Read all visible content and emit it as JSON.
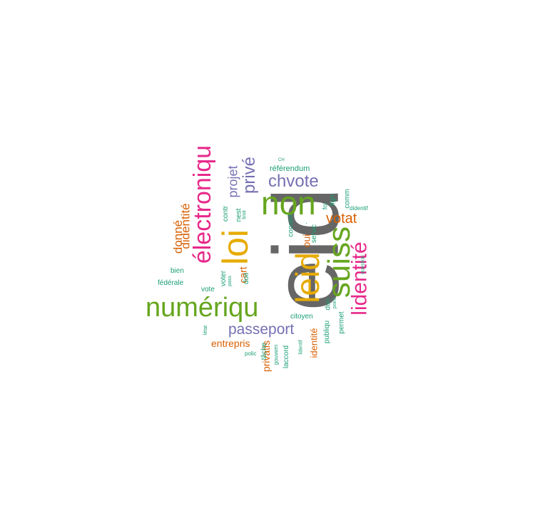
{
  "palette": {
    "gray": "#666666",
    "green": "#66a61e",
    "pink": "#e7298a",
    "gold": "#e6ab02",
    "purple": "#7570b3",
    "orange": "#d95f02",
    "teal": "#1b9e77"
  },
  "words": [
    {
      "id": "eid",
      "text": "eid",
      "color": "gray"
    },
    {
      "id": "non",
      "text": "non",
      "color": "green"
    },
    {
      "id": "loi",
      "text": "loi",
      "color": "gold"
    },
    {
      "id": "leid",
      "text": "leid",
      "color": "gold"
    },
    {
      "id": "suiss",
      "text": "suiss",
      "color": "green"
    },
    {
      "id": "numeriqu",
      "text": "numériqu",
      "color": "green"
    },
    {
      "id": "electroniqu",
      "text": "électroniqu",
      "color": "pink"
    },
    {
      "id": "lidentite",
      "text": "lidentité",
      "color": "pink"
    },
    {
      "id": "chvote",
      "text": "chvote",
      "color": "purple"
    },
    {
      "id": "passeport",
      "text": "passeport",
      "color": "purple"
    },
    {
      "id": "prive",
      "text": "privé",
      "color": "purple"
    },
    {
      "id": "projet",
      "text": "projet",
      "color": "purple"
    },
    {
      "id": "votat",
      "text": "votat",
      "color": "orange"
    },
    {
      "id": "donne",
      "text": "donné",
      "color": "orange"
    },
    {
      "id": "didentite",
      "text": "didentité",
      "color": "orange"
    },
    {
      "id": "entrepris",
      "text": "entrepris",
      "color": "orange"
    },
    {
      "id": "privatis",
      "text": "privatis",
      "color": "orange"
    },
    {
      "id": "identite",
      "text": "identité",
      "color": "orange"
    },
    {
      "id": "oui",
      "text": "oui",
      "color": "orange"
    },
    {
      "id": "cart",
      "text": "cart",
      "color": "orange"
    },
    {
      "id": "referendum",
      "text": "référendum",
      "color": "teal"
    },
    {
      "id": "ch",
      "text": "CH",
      "color": "teal"
    },
    {
      "id": "bien",
      "text": "bien",
      "color": "teal"
    },
    {
      "id": "federale",
      "text": "fédérale",
      "color": "teal"
    },
    {
      "id": "vote",
      "text": "vote",
      "color": "teal"
    },
    {
      "id": "citoyen",
      "text": "citoyen",
      "color": "teal"
    },
    {
      "id": "contr",
      "text": "contr",
      "color": "teal"
    },
    {
      "id": "nest",
      "text": "nest",
      "color": "teal"
    },
    {
      "id": "limit",
      "text": "limit",
      "color": "teal"
    },
    {
      "id": "conseil",
      "text": "conseil",
      "color": "teal"
    },
    {
      "id": "servic",
      "text": "servic",
      "color": "teal"
    },
    {
      "id": "foi",
      "text": "foi",
      "color": "teal"
    },
    {
      "id": "lign",
      "text": "lign",
      "color": "teal"
    },
    {
      "id": "comm",
      "text": "comm",
      "color": "teal"
    },
    {
      "id": "didentif",
      "text": "didentif",
      "color": "teal"
    },
    {
      "id": "question",
      "text": "question",
      "color": "teal"
    },
    {
      "id": "voter",
      "text": "voter",
      "color": "teal"
    },
    {
      "id": "pass",
      "text": "pass",
      "color": "teal"
    },
    {
      "id": "doit",
      "text": "doit",
      "color": "teal"
    },
    {
      "id": "letat",
      "text": "létat",
      "color": "teal"
    },
    {
      "id": "polic",
      "text": "polic",
      "color": "teal"
    },
    {
      "id": "tache",
      "text": "tâche",
      "color": "teal"
    },
    {
      "id": "gouvern",
      "text": "gouvern",
      "color": "teal"
    },
    {
      "id": "laccord",
      "text": "laccord",
      "color": "teal"
    },
    {
      "id": "lidentif",
      "text": "lidentif",
      "color": "teal"
    },
    {
      "id": "publiqu",
      "text": "publiqu",
      "color": "teal"
    },
    {
      "id": "dun",
      "text": "dun",
      "color": "teal"
    },
    {
      "id": "point",
      "text": "point",
      "color": "teal"
    },
    {
      "id": "permet",
      "text": "permet",
      "color": "teal"
    },
    {
      "id": "dot",
      "text": "·",
      "color": "teal"
    }
  ]
}
